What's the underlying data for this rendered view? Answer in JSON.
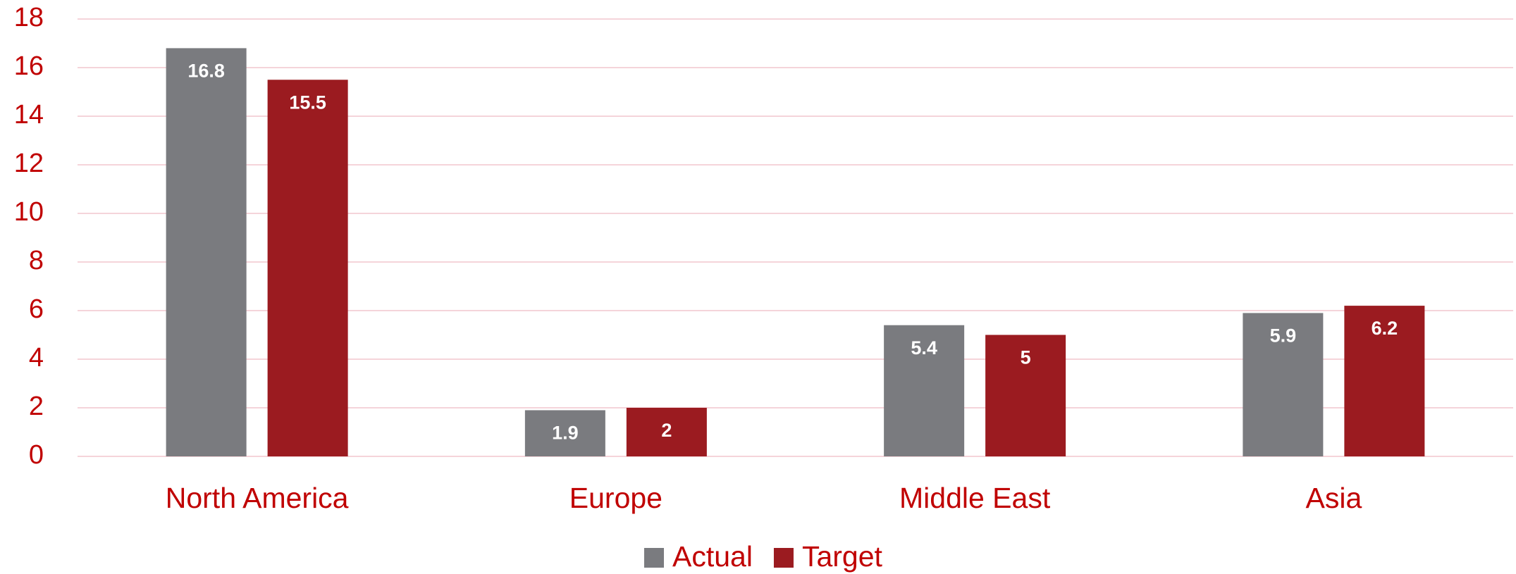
{
  "chart_data": {
    "type": "bar",
    "categories": [
      "North America",
      "Europe",
      "Middle East",
      "Asia"
    ],
    "series": [
      {
        "name": "Actual",
        "color": "#7a7b7f",
        "values": [
          16.8,
          1.9,
          5.4,
          5.9
        ]
      },
      {
        "name": "Target",
        "color": "#9b1b20",
        "values": [
          15.5,
          2,
          5,
          6.2
        ]
      }
    ],
    "ylim": [
      0,
      18
    ],
    "yticks": [
      0,
      2,
      4,
      6,
      8,
      10,
      12,
      14,
      16,
      18
    ],
    "grid": true,
    "legend": "bottom"
  }
}
